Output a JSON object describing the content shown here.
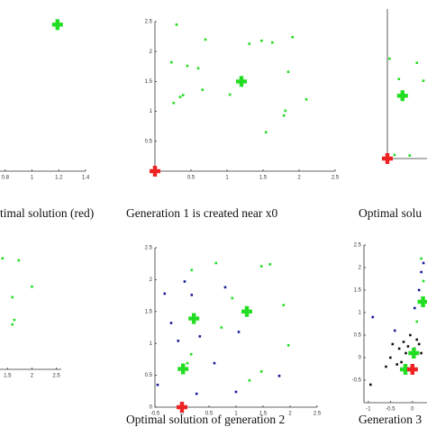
{
  "chart_data": [
    {
      "type": "scatter",
      "caption": "timal solution (red)",
      "xlim": [
        0.7,
        1.4
      ],
      "ylim": [
        0,
        2.5
      ],
      "xticks": [
        0.8,
        1,
        1.2,
        1.4
      ],
      "yticks": [],
      "series": [
        {
          "color": "#22dd22",
          "marker": "plus",
          "x": [
            1.19
          ],
          "y": [
            2.45
          ]
        }
      ]
    },
    {
      "type": "scatter",
      "caption": "Generation 1 is created near x0",
      "xlim": [
        0,
        2.5
      ],
      "ylim": [
        0,
        2.5
      ],
      "xticks": [
        0.5,
        1,
        1.5,
        2,
        2.5
      ],
      "yticks": [
        0.5,
        1,
        1.5,
        2,
        2.5
      ],
      "series": [
        {
          "color": "#22dd22",
          "marker": "square",
          "x": [
            0.3,
            0.7,
            0.23,
            0.45,
            0.6,
            0.39,
            0.35,
            0.26,
            0.66,
            1.04,
            1.31,
            1.48,
            1.63,
            1.91,
            1.85,
            1.81,
            1.79,
            1.54,
            2.1
          ],
          "y": [
            2.45,
            2.2,
            1.82,
            1.76,
            1.72,
            1.27,
            1.24,
            1.14,
            1.36,
            1.28,
            2.13,
            2.18,
            2.15,
            2.24,
            1.66,
            1.01,
            0.93,
            0.65,
            1.2
          ]
        },
        {
          "color": "#22dd22",
          "marker": "plus",
          "x": [
            1.2
          ],
          "y": [
            1.5
          ]
        },
        {
          "color": "#ee2222",
          "marker": "plus",
          "x": [
            0
          ],
          "y": [
            0
          ]
        }
      ]
    },
    {
      "type": "scatter",
      "caption": "Optimal solu",
      "xlim": [
        0,
        0.55
      ],
      "ylim": [
        0,
        2.5
      ],
      "xticks": [],
      "yticks": [],
      "series": [
        {
          "color": "#22dd22",
          "marker": "square",
          "x": [
            0.03,
            0.16,
            0.41,
            0.5,
            0.1,
            0.31
          ],
          "y": [
            1.67,
            1.33,
            1.6,
            1.3,
            0.06,
            0.05
          ]
        },
        {
          "color": "#22dd22",
          "marker": "plus",
          "x": [
            0.21
          ],
          "y": [
            1.05
          ]
        },
        {
          "color": "#ee2222",
          "marker": "plus",
          "x": [
            0
          ],
          "y": [
            0
          ]
        }
      ]
    },
    {
      "type": "scatter",
      "xlim": [
        1.2,
        2.6
      ],
      "ylim": [
        0,
        2.5
      ],
      "xticks": [
        1.5,
        2,
        2.5
      ],
      "yticks": [],
      "series": [
        {
          "color": "#22dd22",
          "marker": "square",
          "x": [
            1.4,
            1.73,
            1.6,
            1.64,
            1.6,
            2.0,
            1.3
          ],
          "y": [
            2.2,
            2.16,
            1.43,
            0.98,
            0.89,
            1.64,
            0.57
          ]
        }
      ]
    },
    {
      "type": "scatter",
      "caption": "Optimal solution of generation 2",
      "xlim": [
        -0.5,
        2.5
      ],
      "ylim": [
        0,
        2.5
      ],
      "xticks": [
        -0.5,
        0,
        0.5,
        1,
        1.5,
        2,
        2.5
      ],
      "yticks": [
        0,
        0.5,
        1,
        1.5,
        2,
        2.5
      ],
      "series": [
        {
          "color": "#22dd22",
          "marker": "square",
          "x": [
            0.18,
            0.63,
            1.47,
            1.63,
            0.93,
            1.88,
            0.73,
            0.1,
            0.17,
            1.97,
            1.47,
            1.25
          ],
          "y": [
            2.15,
            2.26,
            2.21,
            2.24,
            1.71,
            1.6,
            1.25,
            0.69,
            0.83,
            0.97,
            0.56,
            0.42
          ]
        },
        {
          "color": "#1a1a99",
          "marker": "square",
          "x": [
            -0.32,
            0.05,
            -0.2,
            0.18,
            -0.07,
            0.33,
            1.05,
            0.6,
            -0.45,
            1.0,
            0.27,
            1.8,
            0.8
          ],
          "y": [
            1.78,
            1.97,
            1.32,
            1.76,
            1.04,
            1.11,
            1.18,
            0.69,
            0.35,
            0.24,
            0.21,
            0.49,
            1.88
          ]
        },
        {
          "color": "#22dd22",
          "marker": "plus",
          "x": [
            1.2,
            0.22,
            0.02
          ],
          "y": [
            1.5,
            1.39,
            0.6
          ]
        },
        {
          "color": "#ee2222",
          "marker": "plus",
          "x": [
            0
          ],
          "y": [
            0
          ]
        }
      ]
    },
    {
      "type": "scatter",
      "caption": "Generation 3",
      "xlim": [
        -1.1,
        0.33
      ],
      "ylim": [
        -1,
        2.5
      ],
      "xticks": [
        -1,
        -0.5,
        0
      ],
      "yticks": [
        -0.5,
        0,
        0.5,
        1,
        1.5,
        2,
        2.5
      ],
      "series": [
        {
          "color": "#111111",
          "marker": "square",
          "x": [
            -0.45,
            -0.3,
            -0.2,
            -0.15,
            -0.1,
            0.05,
            0.1,
            0.15,
            -0.6,
            -0.35,
            -0.05,
            0.2,
            -0.25,
            -0.5,
            -0.95
          ],
          "y": [
            0.3,
            0.2,
            0.35,
            0.1,
            0.25,
            0.2,
            0.4,
            0.3,
            -0.2,
            -0.15,
            0.5,
            0.1,
            -0.1,
            0.0,
            -0.6
          ]
        },
        {
          "color": "#1a1a99",
          "marker": "square",
          "x": [
            -0.9,
            0.2,
            0.15,
            -0.4,
            0.05,
            0.25
          ],
          "y": [
            0.9,
            1.9,
            1.5,
            0.6,
            1.1,
            2.1
          ]
        },
        {
          "color": "#22dd22",
          "marker": "square",
          "x": [
            0.2,
            0.25,
            0.1
          ],
          "y": [
            2.2,
            1.7,
            0.8
          ]
        },
        {
          "color": "#22dd22",
          "marker": "plus",
          "x": [
            0.24,
            -0.16,
            0.03
          ],
          "y": [
            1.24,
            -0.26,
            0.1
          ]
        },
        {
          "color": "#ee2222",
          "marker": "plus",
          "x": [
            0
          ],
          "y": [
            -0.26
          ]
        }
      ]
    }
  ]
}
